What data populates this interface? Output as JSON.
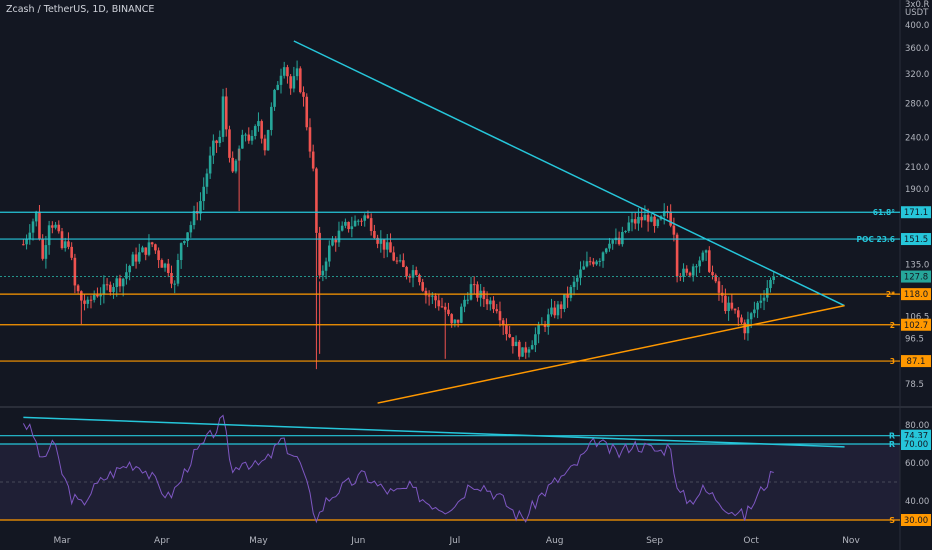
{
  "title": "Zcash / TetherUS, 1D, BINANCE",
  "currency_top": "3x0.R",
  "currency": "USDT",
  "colors": {
    "background": "#131722",
    "up": "#26a69a",
    "down": "#ef5350",
    "cyan": "#26c6da",
    "orange": "#ff9800",
    "rsi": "#7e57c2",
    "axis_text": "#b2b5be",
    "grid": "#1e222d"
  },
  "chart_data": [
    {
      "type": "candlestick",
      "title": "Zcash / TetherUS, 1D, BINANCE",
      "y_scale": "log",
      "ylim": [
        70,
        420
      ],
      "x_ticks": [
        "Mar",
        "Apr",
        "May",
        "Jun",
        "Jul",
        "Aug",
        "Sep",
        "Oct",
        "Nov"
      ],
      "y_ticks": [
        "400.0",
        "360.0",
        "320.0",
        "280.0",
        "240.0",
        "210.0",
        "190.0",
        "135.0",
        "106.5",
        "96.5",
        "78.5"
      ],
      "y_tick_values": [
        400,
        360,
        320,
        280,
        240,
        210,
        190,
        135,
        106.5,
        96.5,
        78.5
      ],
      "close_path": [
        [
          "2021-02-17",
          148
        ],
        [
          "2021-02-19",
          160
        ],
        [
          "2021-02-21",
          170
        ],
        [
          "2021-02-23",
          138
        ],
        [
          "2021-02-25",
          165
        ],
        [
          "2021-02-27",
          160
        ],
        [
          "2021-03-01",
          145
        ],
        [
          "2021-03-03",
          150
        ],
        [
          "2021-03-05",
          122
        ],
        [
          "2021-03-07",
          115
        ],
        [
          "2021-03-09",
          112
        ],
        [
          "2021-03-11",
          118
        ],
        [
          "2021-03-14",
          120
        ],
        [
          "2021-03-17",
          124
        ],
        [
          "2021-03-20",
          127
        ],
        [
          "2021-03-23",
          138
        ],
        [
          "2021-03-26",
          143
        ],
        [
          "2021-03-29",
          148
        ],
        [
          "2021-04-01",
          136
        ],
        [
          "2021-04-03",
          133
        ],
        [
          "2021-04-05",
          122
        ],
        [
          "2021-04-07",
          150
        ],
        [
          "2021-04-10",
          162
        ],
        [
          "2021-04-13",
          180
        ],
        [
          "2021-04-15",
          205
        ],
        [
          "2021-04-17",
          230
        ],
        [
          "2021-04-19",
          240
        ],
        [
          "2021-04-20",
          285
        ],
        [
          "2021-04-21",
          250
        ],
        [
          "2021-04-23",
          200
        ],
        [
          "2021-04-25",
          228
        ],
        [
          "2021-04-27",
          245
        ],
        [
          "2021-04-29",
          236
        ],
        [
          "2021-05-01",
          260
        ],
        [
          "2021-05-03",
          230
        ],
        [
          "2021-05-05",
          272
        ],
        [
          "2021-05-07",
          310
        ],
        [
          "2021-05-09",
          340
        ],
        [
          "2021-05-11",
          300
        ],
        [
          "2021-05-13",
          320
        ],
        [
          "2021-05-15",
          285
        ],
        [
          "2021-05-16",
          255
        ],
        [
          "2021-05-18",
          205
        ],
        [
          "2021-05-19",
          155
        ],
        [
          "2021-05-20",
          125
        ],
        [
          "2021-05-22",
          140
        ],
        [
          "2021-05-24",
          150
        ],
        [
          "2021-05-26",
          155
        ],
        [
          "2021-05-28",
          160
        ],
        [
          "2021-05-30",
          162
        ],
        [
          "2021-06-01",
          165
        ],
        [
          "2021-06-03",
          168
        ],
        [
          "2021-06-05",
          162
        ],
        [
          "2021-06-07",
          152
        ],
        [
          "2021-06-10",
          145
        ],
        [
          "2021-06-13",
          136
        ],
        [
          "2021-06-16",
          130
        ],
        [
          "2021-06-19",
          132
        ],
        [
          "2021-06-22",
          118
        ],
        [
          "2021-06-25",
          115
        ],
        [
          "2021-06-28",
          110
        ],
        [
          "2021-06-30",
          102
        ],
        [
          "2021-07-02",
          105
        ],
        [
          "2021-07-04",
          115
        ],
        [
          "2021-07-06",
          122
        ],
        [
          "2021-07-08",
          118
        ],
        [
          "2021-07-11",
          115
        ],
        [
          "2021-07-14",
          112
        ],
        [
          "2021-07-17",
          100
        ],
        [
          "2021-07-20",
          93
        ],
        [
          "2021-07-22",
          90
        ],
        [
          "2021-07-25",
          96
        ],
        [
          "2021-07-28",
          102
        ],
        [
          "2021-07-31",
          108
        ],
        [
          "2021-08-03",
          112
        ],
        [
          "2021-08-06",
          120
        ],
        [
          "2021-08-09",
          130
        ],
        [
          "2021-08-12",
          137
        ],
        [
          "2021-08-15",
          140
        ],
        [
          "2021-08-18",
          152
        ],
        [
          "2021-08-21",
          148
        ],
        [
          "2021-08-24",
          162
        ],
        [
          "2021-08-27",
          165
        ],
        [
          "2021-08-30",
          168
        ],
        [
          "2021-09-01",
          158
        ],
        [
          "2021-09-03",
          165
        ],
        [
          "2021-09-05",
          172
        ],
        [
          "2021-09-07",
          158
        ],
        [
          "2021-09-08",
          132
        ],
        [
          "2021-09-11",
          128
        ],
        [
          "2021-09-14",
          138
        ],
        [
          "2021-09-17",
          140
        ],
        [
          "2021-09-20",
          122
        ],
        [
          "2021-09-23",
          112
        ],
        [
          "2021-09-26",
          108
        ],
        [
          "2021-09-29",
          101
        ],
        [
          "2021-10-01",
          107
        ],
        [
          "2021-10-04",
          116
        ],
        [
          "2021-10-06",
          122
        ],
        [
          "2021-10-08",
          127.8
        ]
      ],
      "horizontal_levels": [
        {
          "value": 171.1,
          "label": "61.8°",
          "color": "#26c6da",
          "tag": "171.1"
        },
        {
          "value": 151.5,
          "label": "POC 23.6",
          "color": "#26c6da",
          "tag": "151.5"
        },
        {
          "value": 127.8,
          "label": "",
          "color": "#26a69a",
          "tag": "127.8",
          "dashed": true
        },
        {
          "value": 118.0,
          "label": "2*",
          "color": "#ff9800",
          "tag": "118.0"
        },
        {
          "value": 102.7,
          "label": "2",
          "color": "#ff9800",
          "tag": "102.7"
        },
        {
          "value": 87.1,
          "label": "3",
          "color": "#ff9800",
          "tag": "87.1"
        }
      ],
      "trendlines": [
        {
          "name": "resistance",
          "color": "#26c6da",
          "from": [
            "2021-05-12",
            372
          ],
          "to": [
            "2021-10-30",
            112
          ]
        },
        {
          "name": "support",
          "color": "#ff9800",
          "from": [
            "2021-06-07",
            72
          ],
          "to": [
            "2021-10-30",
            112
          ]
        }
      ]
    },
    {
      "type": "line",
      "name": "RSI",
      "ylim": [
        28,
        86
      ],
      "y_ticks": [
        "80.00",
        "60.00",
        "40.00"
      ],
      "y_tick_values": [
        80,
        60,
        40
      ],
      "rsi_path": [
        [
          "2021-02-17",
          82
        ],
        [
          "2021-02-20",
          75
        ],
        [
          "2021-02-23",
          60
        ],
        [
          "2021-02-26",
          72
        ],
        [
          "2021-03-01",
          55
        ],
        [
          "2021-03-04",
          42
        ],
        [
          "2021-03-07",
          38
        ],
        [
          "2021-03-10",
          45
        ],
        [
          "2021-03-14",
          52
        ],
        [
          "2021-03-18",
          56
        ],
        [
          "2021-03-22",
          60
        ],
        [
          "2021-03-26",
          58
        ],
        [
          "2021-03-30",
          50
        ],
        [
          "2021-04-03",
          42
        ],
        [
          "2021-04-06",
          48
        ],
        [
          "2021-04-10",
          62
        ],
        [
          "2021-04-14",
          70
        ],
        [
          "2021-04-18",
          78
        ],
        [
          "2021-04-20",
          83
        ],
        [
          "2021-04-23",
          55
        ],
        [
          "2021-04-26",
          62
        ],
        [
          "2021-04-30",
          58
        ],
        [
          "2021-05-04",
          62
        ],
        [
          "2021-05-08",
          72
        ],
        [
          "2021-05-11",
          66
        ],
        [
          "2021-05-14",
          60
        ],
        [
          "2021-05-17",
          42
        ],
        [
          "2021-05-19",
          30
        ],
        [
          "2021-05-22",
          40
        ],
        [
          "2021-05-26",
          46
        ],
        [
          "2021-05-30",
          50
        ],
        [
          "2021-06-03",
          54
        ],
        [
          "2021-06-07",
          48
        ],
        [
          "2021-06-12",
          44
        ],
        [
          "2021-06-17",
          47
        ],
        [
          "2021-06-22",
          40
        ],
        [
          "2021-06-28",
          36
        ],
        [
          "2021-07-02",
          40
        ],
        [
          "2021-07-06",
          50
        ],
        [
          "2021-07-10",
          48
        ],
        [
          "2021-07-15",
          42
        ],
        [
          "2021-07-20",
          33
        ],
        [
          "2021-07-23",
          31
        ],
        [
          "2021-07-27",
          42
        ],
        [
          "2021-08-01",
          50
        ],
        [
          "2021-08-06",
          56
        ],
        [
          "2021-08-10",
          64
        ],
        [
          "2021-08-14",
          72
        ],
        [
          "2021-08-17",
          68
        ],
        [
          "2021-08-21",
          65
        ],
        [
          "2021-08-25",
          70
        ],
        [
          "2021-08-30",
          68
        ],
        [
          "2021-09-03",
          66
        ],
        [
          "2021-09-06",
          70
        ],
        [
          "2021-09-08",
          45
        ],
        [
          "2021-09-12",
          40
        ],
        [
          "2021-09-16",
          46
        ],
        [
          "2021-09-20",
          42
        ],
        [
          "2021-09-24",
          36
        ],
        [
          "2021-09-29",
          32
        ],
        [
          "2021-10-02",
          40
        ],
        [
          "2021-10-05",
          48
        ],
        [
          "2021-10-08",
          55
        ]
      ],
      "horizontal_levels": [
        {
          "value": 74.37,
          "label": "R",
          "color": "#26c6da",
          "tag": "74.37"
        },
        {
          "value": 70.0,
          "label": "R",
          "color": "#26c6da",
          "tag": "70.00"
        },
        {
          "value": 30.0,
          "label": "S",
          "color": "#ff9800",
          "tag": "30.00"
        }
      ],
      "trendline": {
        "color": "#26c6da",
        "from": [
          "2021-02-17",
          84
        ],
        "to": [
          "2021-10-30",
          68.5
        ]
      }
    }
  ]
}
